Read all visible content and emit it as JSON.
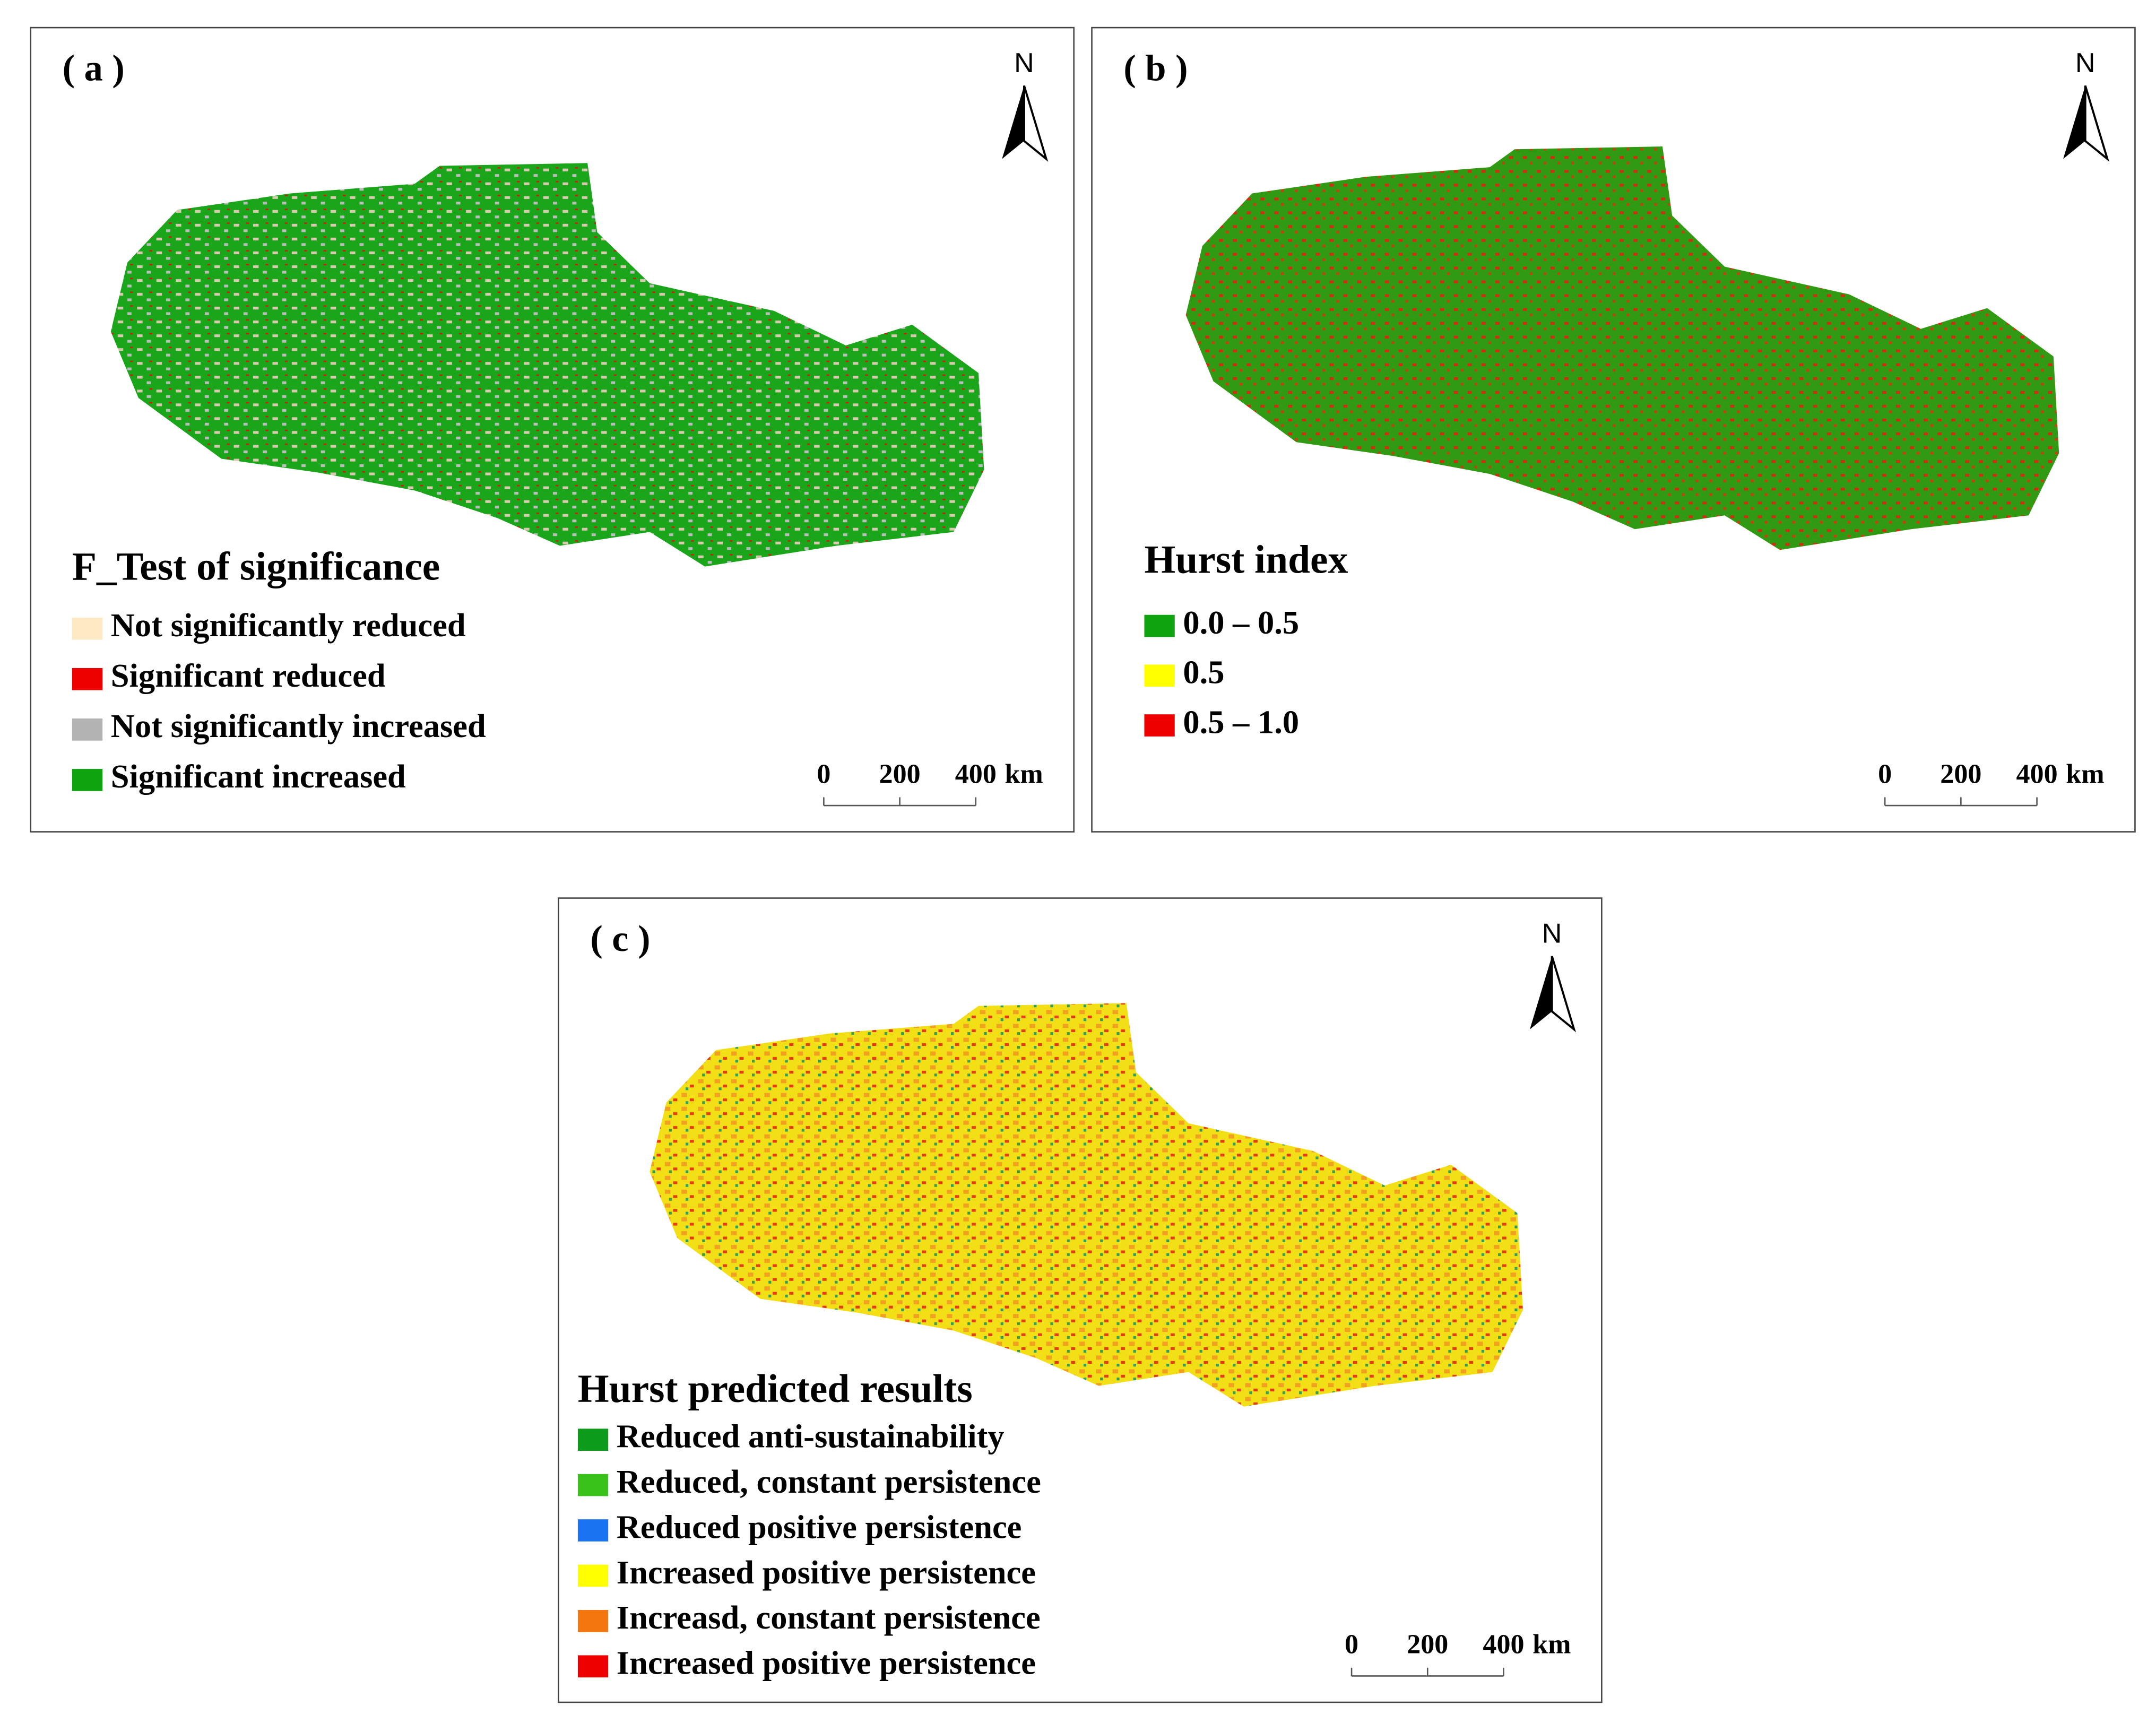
{
  "panels": [
    {
      "label": "( a )",
      "legend_title": "F_Test of significance",
      "north": "N",
      "legend": [
        {
          "label": "Not significantly reduced",
          "color": "#fde9c4"
        },
        {
          "label": "Significant reduced",
          "color": "#ee0000"
        },
        {
          "label": "Not significantly increased",
          "color": "#b3b3b3"
        },
        {
          "label": "Significant increased",
          "color": "#0fa30f"
        }
      ],
      "scale": [
        "0",
        "200",
        "400",
        "km"
      ]
    },
    {
      "label": "( b )",
      "legend_title": "Hurst index",
      "north": "N",
      "legend": [
        {
          "label": "0.0 – 0.5",
          "color": "#0fa30f"
        },
        {
          "label": "0.5",
          "color": "#ffff00"
        },
        {
          "label": "0.5 – 1.0",
          "color": "#ee0000"
        }
      ],
      "scale": [
        "0",
        "200",
        "400",
        "km"
      ]
    },
    {
      "label": "( c )",
      "legend_title": "Hurst predicted results",
      "north": "N",
      "legend": [
        {
          "label": "Reduced anti-sustainability",
          "color": "#0c9b1a"
        },
        {
          "label": "Reduced, constant persistence",
          "color": "#38c21a"
        },
        {
          "label": "Reduced positive persistence",
          "color": "#1a73f0"
        },
        {
          "label": "Increased positive persistence",
          "color": "#ffff00"
        },
        {
          "label": "Increasd, constant persistence",
          "color": "#f4760f"
        },
        {
          "label": "Increased positive persistence",
          "color": "#ee0000"
        }
      ],
      "scale": [
        "0",
        "200",
        "400",
        "km"
      ]
    }
  ]
}
